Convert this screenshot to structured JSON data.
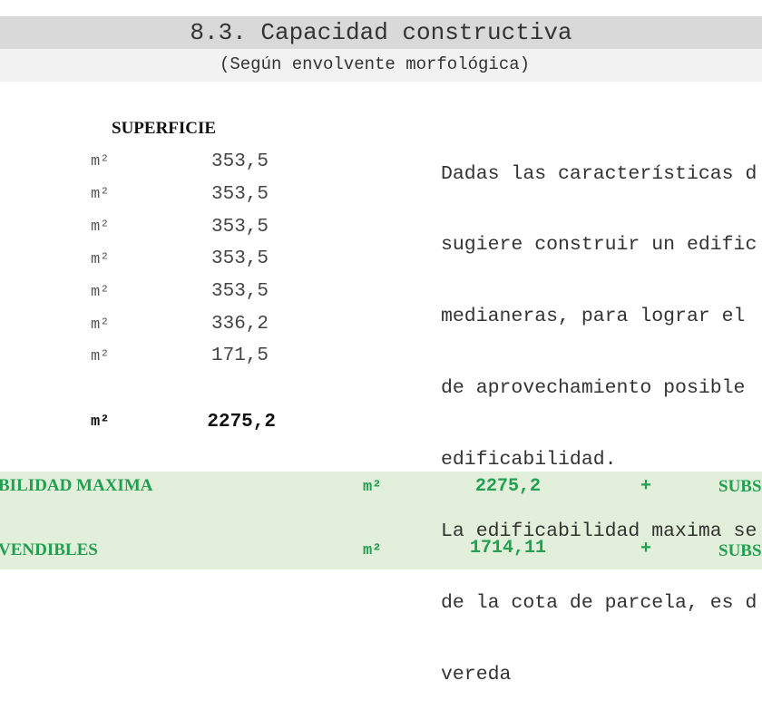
{
  "header": {
    "title": "8.3. Capacidad constructiva",
    "subtitle": "(Según envolvente morfológica)"
  },
  "surface_table": {
    "column_header": "SUPERFICIE",
    "rows": [
      {
        "unit": "m²",
        "value": "353,5"
      },
      {
        "unit": "m²",
        "value": "353,5"
      },
      {
        "unit": "m²",
        "value": "353,5"
      },
      {
        "unit": "m²",
        "value": "353,5"
      },
      {
        "unit": "m²",
        "value": "353,5"
      },
      {
        "unit": "m²",
        "value": "336,2"
      },
      {
        "unit": "m²",
        "value": "171,5"
      }
    ],
    "total": {
      "unit": "m²",
      "value": "2275,2"
    }
  },
  "description": {
    "lines": [
      "Dadas las características d",
      "sugiere construir un edific",
      "medianeras, para lograr el",
      "de aprovechamiento posible",
      "edificabilidad.",
      "La edificabilidad maxima se",
      "de la cota de parcela, es d",
      "vereda"
    ]
  },
  "summary": {
    "colors": {
      "band": "#e2efda",
      "text": "#22a050"
    },
    "rows": [
      {
        "label": "BILIDAD MAXIMA",
        "unit": "m²",
        "value": "2275,2",
        "operator": "+",
        "suffix": "SUBS"
      },
      {
        "label": "VENDIBLES",
        "unit": "m²",
        "value": "1714,11",
        "operator": "+",
        "suffix": "SUBS"
      }
    ]
  }
}
